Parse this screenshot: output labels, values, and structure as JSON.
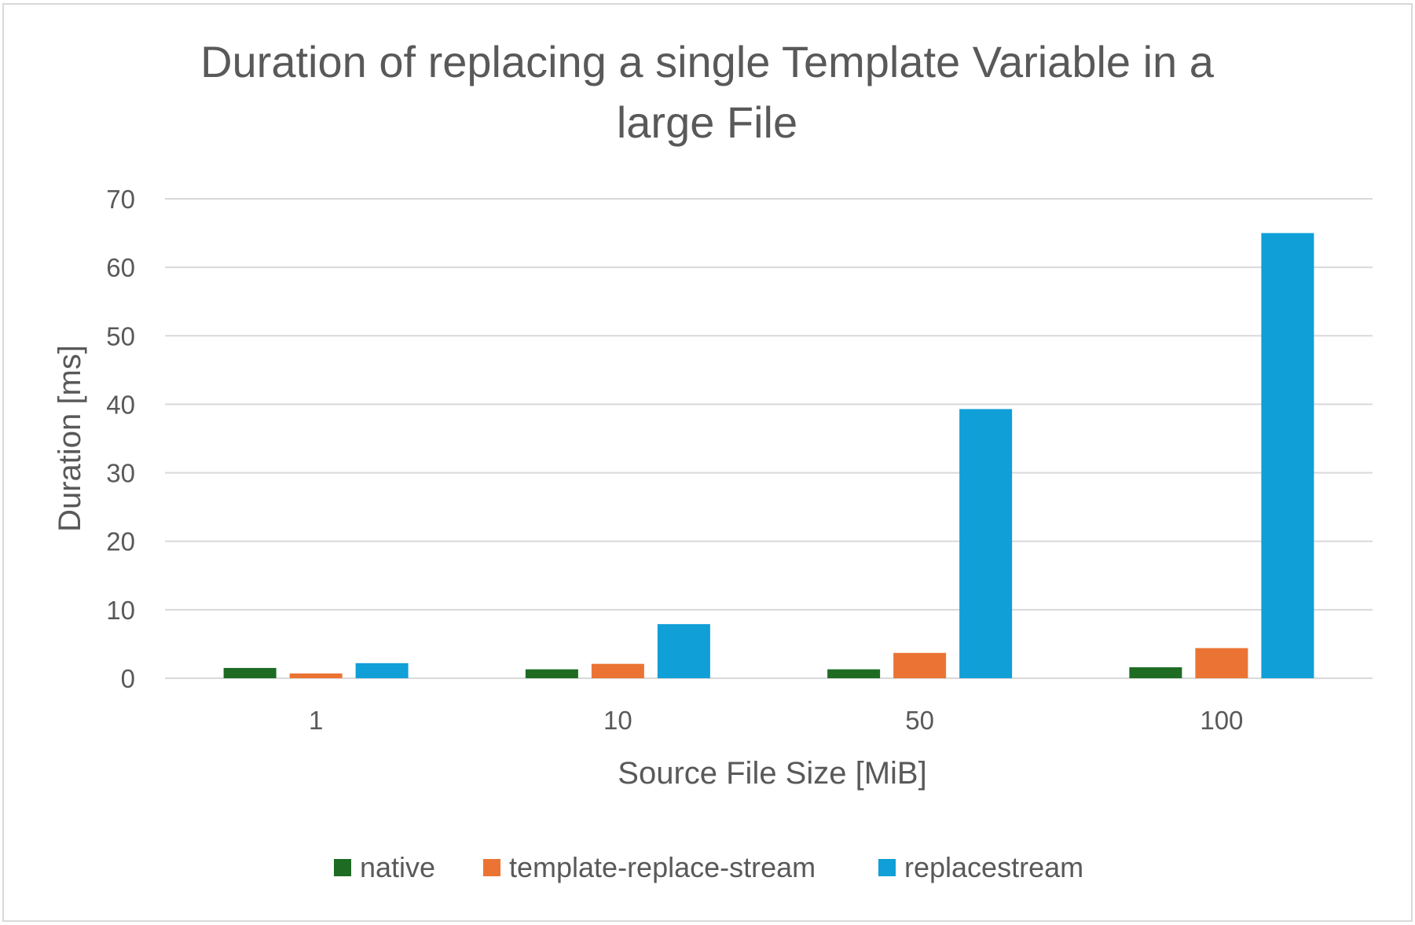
{
  "chart_data": {
    "type": "bar",
    "title_lines": [
      "Duration of replacing a single Template Variable in a",
      "large File"
    ],
    "xlabel": "Source File Size [MiB]",
    "ylabel": "Duration [ms]",
    "categories": [
      "1",
      "10",
      "50",
      "100"
    ],
    "ylim": [
      0,
      70
    ],
    "yticks": [
      0,
      10,
      20,
      30,
      40,
      50,
      60,
      70
    ],
    "grid": true,
    "legend_position": "bottom",
    "series": [
      {
        "name": "native",
        "color": "#1e6b24",
        "values": [
          1.5,
          1.3,
          1.3,
          1.6
        ]
      },
      {
        "name": "template-replace-stream",
        "color": "#eb7434",
        "values": [
          0.7,
          2.1,
          3.7,
          4.4
        ]
      },
      {
        "name": "replacestream",
        "color": "#109fd7",
        "values": [
          2.2,
          7.9,
          39.3,
          65.0
        ]
      }
    ]
  }
}
